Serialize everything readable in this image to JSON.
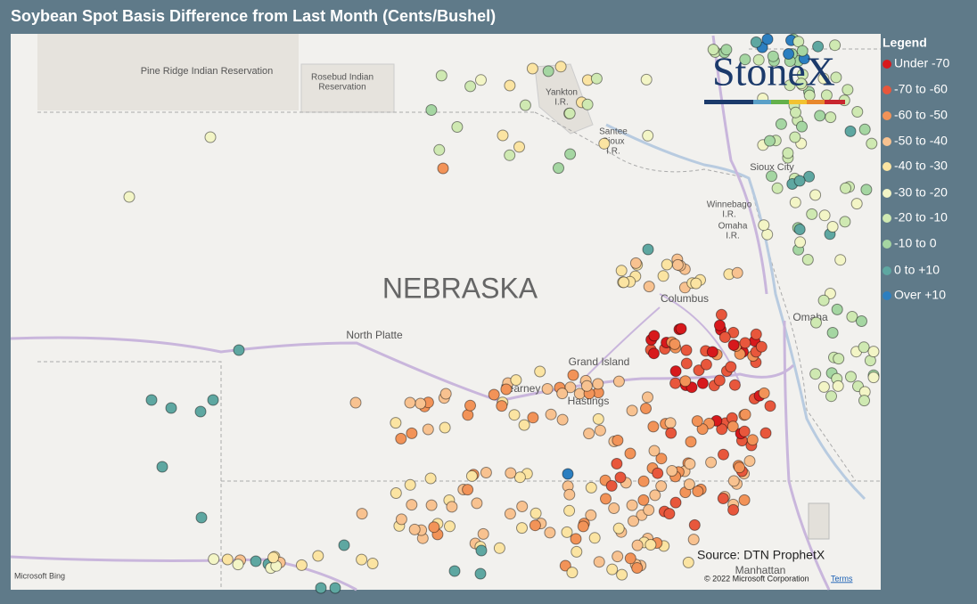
{
  "header": {
    "title": "Soybean Spot Basis Difference from Last Month (Cents/Bushel)"
  },
  "legend": {
    "title": "Legend",
    "items": [
      {
        "label": "Under -70",
        "color": "#d7191c"
      },
      {
        "label": "-70 to -60",
        "color": "#e8573c"
      },
      {
        "label": "-60 to -50",
        "color": "#f29358"
      },
      {
        "label": "-50 to -40",
        "color": "#f8c290"
      },
      {
        "label": "-40 to -30",
        "color": "#fbe4a2"
      },
      {
        "label": "-30 to -20",
        "color": "#f3f5c6"
      },
      {
        "label": "-20 to -10",
        "color": "#cfe9b2"
      },
      {
        "label": "-10 to 0",
        "color": "#a5d6a2"
      },
      {
        "label": "0 to +10",
        "color": "#5ea7a1"
      },
      {
        "label": "Over +10",
        "color": "#2c7fc0"
      }
    ]
  },
  "map": {
    "labels": [
      {
        "lines": [
          "Pine Ridge Indian Reservation"
        ]
      },
      {
        "lines": [
          "Rosebud Indian",
          "Reservation"
        ]
      },
      {
        "lines": [
          "Yankton",
          "I.R."
        ]
      },
      {
        "lines": [
          "Santee",
          "Sioux",
          "I.R."
        ]
      },
      {
        "lines": [
          "Sioux City"
        ]
      },
      {
        "lines": [
          "Winnebago",
          "I.R."
        ]
      },
      {
        "lines": [
          "Omaha",
          "I.R."
        ]
      },
      {
        "lines": [
          "NEBRASKA"
        ]
      },
      {
        "lines": [
          "Columbus"
        ]
      },
      {
        "lines": [
          "Omaha"
        ]
      },
      {
        "lines": [
          "North Platte"
        ]
      },
      {
        "lines": [
          "Grand Island"
        ]
      },
      {
        "lines": [
          "Kearney"
        ]
      },
      {
        "lines": [
          "Hastings"
        ]
      },
      {
        "lines": [
          "Manhattan"
        ]
      }
    ]
  },
  "logo": "StoneX",
  "source": "Source: DTN ProphetX",
  "attribution": {
    "provider": "Microsoft Bing",
    "copyright": "© 2022 Microsoft Corporation",
    "terms": "Terms"
  }
}
